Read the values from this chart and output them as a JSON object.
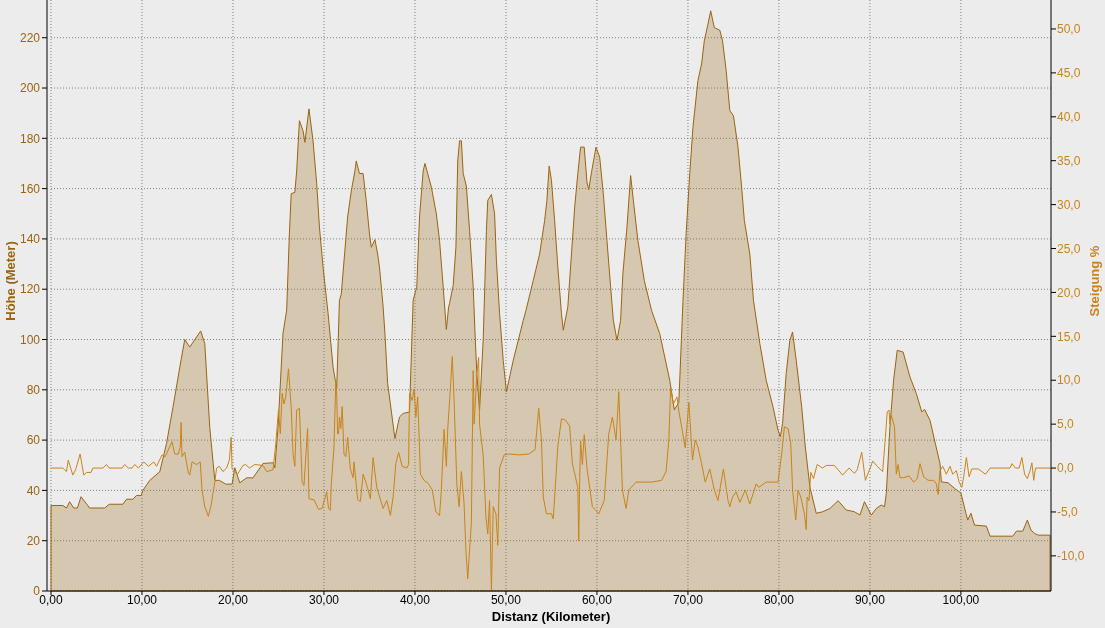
{
  "chart_data": {
    "type": "area",
    "xlabel": "Distanz (Kilometer)",
    "ylabel": "Höhe (Meter)",
    "y2label": "Steigung %",
    "xlim": [
      0,
      109.9
    ],
    "xticks": [
      {
        "value": 0,
        "label": "0,00"
      },
      {
        "value": 10,
        "label": "10,00"
      },
      {
        "value": 20,
        "label": "20,00"
      },
      {
        "value": 30,
        "label": "30,00"
      },
      {
        "value": 40,
        "label": "40,00"
      },
      {
        "value": 50,
        "label": "50,00"
      },
      {
        "value": 60,
        "label": "60,00"
      },
      {
        "value": 70,
        "label": "70,00"
      },
      {
        "value": 80,
        "label": "80,00"
      },
      {
        "value": 90,
        "label": "90,00"
      },
      {
        "value": 100,
        "label": "100,00"
      }
    ],
    "ylim": [
      0,
      235
    ],
    "yticks": [
      0,
      20,
      40,
      60,
      80,
      100,
      120,
      140,
      160,
      180,
      200,
      220
    ],
    "y2lim": [
      -14.0,
      53.3
    ],
    "y2ticks": [
      {
        "value": -10,
        "label": "-10,0"
      },
      {
        "value": -5,
        "label": "-5,0"
      },
      {
        "value": 0,
        "label": "0,0"
      },
      {
        "value": 5,
        "label": "5,0"
      },
      {
        "value": 10,
        "label": "10,0"
      },
      {
        "value": 15,
        "label": "15,0"
      },
      {
        "value": 20,
        "label": "20,0"
      },
      {
        "value": 25,
        "label": "25,0"
      },
      {
        "value": 30,
        "label": "30,0"
      },
      {
        "value": 35,
        "label": "35,0"
      },
      {
        "value": 40,
        "label": "40,0"
      },
      {
        "value": 45,
        "label": "45,0"
      },
      {
        "value": 50,
        "label": "50,0"
      }
    ],
    "grid": true,
    "series": [
      {
        "type": "area",
        "color": "#9a6410",
        "x": [
          0,
          1.3,
          1.7,
          2.05,
          2.5,
          2.9,
          3.3,
          4.25,
          5.9,
          6.4,
          7.9,
          8.3,
          9.0,
          9.4,
          9.9,
          10.1,
          10.85,
          11.95,
          12.7,
          13.4,
          14.3,
          14.7,
          15.25,
          16.0,
          16.45,
          16.9,
          17.45,
          18.0,
          18.5,
          19.2,
          19.9,
          20.2,
          20.75,
          21.5,
          22.2,
          23.3,
          24.4,
          24.6,
          24.95,
          25.5,
          25.9,
          26.2,
          26.4,
          26.8,
          27.0,
          27.3,
          27.7,
          27.9,
          28.35,
          28.8,
          29.2,
          29.5,
          29.9,
          30.45,
          31.0,
          31.4,
          31.7,
          31.9,
          32.6,
          33.0,
          33.4,
          33.55,
          33.9,
          34.3,
          34.65,
          35.0,
          35.2,
          35.6,
          35.9,
          36.1,
          36.5,
          36.7,
          37.0,
          37.8,
          38.3,
          38.7,
          39.4,
          39.8,
          40.2,
          40.5,
          40.9,
          41.1,
          41.4,
          41.8,
          42.35,
          42.7,
          43.1,
          43.45,
          43.7,
          43.8,
          44.2,
          44.5,
          44.7,
          44.9,
          45.1,
          45.3,
          45.65,
          46.0,
          46.4,
          46.6,
          46.8,
          47.1,
          47.5,
          47.85,
          48.0,
          48.4,
          48.75,
          48.95,
          49.3,
          49.7,
          50.05,
          50.8,
          51.9,
          52.2,
          53.0,
          53.7,
          54.25,
          54.5,
          54.75,
          55.0,
          55.35,
          55.7,
          56.1,
          56.3,
          56.8,
          57.2,
          57.55,
          57.9,
          58.2,
          58.6,
          58.9,
          59.1,
          59.4,
          59.9,
          60.3,
          60.7,
          61.1,
          61.5,
          61.8,
          62.2,
          62.6,
          62.85,
          63.3,
          63.7,
          64.0,
          64.5,
          65.2,
          66.0,
          66.9,
          68.0,
          68.5,
          69.0,
          69.45,
          69.8,
          70.2,
          70.55,
          71.1,
          71.5,
          71.8,
          72.2,
          72.5,
          72.9,
          73.5,
          73.8,
          74.2,
          74.6,
          75.0,
          75.5,
          75.9,
          76.2,
          76.8,
          77.2,
          77.9,
          78.6,
          79.35,
          79.9,
          80.15,
          80.4,
          80.8,
          81.2,
          81.5,
          81.9,
          82.5,
          82.9,
          83.4,
          84.1,
          84.8,
          85.6,
          86.5,
          87.4,
          88.3,
          88.9,
          89.4,
          90.15,
          90.7,
          91.25,
          91.6,
          91.8,
          92.2,
          92.6,
          93.0,
          93.65,
          94.4,
          95.1,
          95.7,
          96.0,
          96.6,
          97.1,
          97.7,
          97.85,
          98.6,
          99.3,
          100.0,
          100.55,
          100.75,
          101.1,
          101.5,
          102.8,
          103.2,
          105.7,
          106.1,
          106.8,
          107.3,
          107.7,
          108.1,
          108.5,
          109.8
        ],
        "values": [
          34,
          34,
          33,
          35.5,
          33,
          33,
          37.5,
          33,
          33,
          34.5,
          34.5,
          36.5,
          36.5,
          38,
          38,
          40,
          44,
          47.4,
          58.7,
          73,
          92,
          100,
          97,
          101,
          103.4,
          98.4,
          65,
          44,
          44,
          42.5,
          42.5,
          49,
          43,
          45,
          45,
          50.7,
          51,
          49,
          65,
          102.5,
          111.6,
          142,
          158,
          158.5,
          167,
          187,
          183,
          178.4,
          191.7,
          179,
          162,
          144.7,
          128.8,
          110.4,
          89,
          80.5,
          115.6,
          118,
          148.7,
          159,
          167,
          171,
          166,
          166,
          155,
          142,
          136.7,
          139.7,
          134,
          128.8,
          113,
          102.3,
          82.5,
          60.6,
          69.2,
          70.6,
          71.2,
          115.6,
          121,
          148.7,
          167,
          170,
          166,
          160.6,
          150,
          139.4,
          121,
          104,
          113,
          114.3,
          121.5,
          136.7,
          171,
          179,
          179,
          166,
          161,
          143.4,
          121,
          102.4,
          86.5,
          72,
          100,
          143,
          155.3,
          157.7,
          150,
          131.5,
          110.3,
          91.7,
          79.2,
          91.7,
          107.6,
          111.6,
          123.5,
          134,
          147.3,
          155.3,
          169,
          163.2,
          147.3,
          128.8,
          110.3,
          103.7,
          113,
          134,
          152.6,
          166,
          176.5,
          176.5,
          162.6,
          159.6,
          166.5,
          176.5,
          172.5,
          158,
          139.4,
          121,
          107.6,
          99.7,
          107.6,
          126.2,
          144.7,
          165.2,
          155.3,
          139.4,
          123.5,
          111.6,
          102.3,
          83.8,
          72,
          75,
          115,
          142,
          166,
          184.4,
          203,
          209.6,
          218.8,
          225.4,
          230.7,
          224,
          223,
          218.8,
          207,
          191,
          189,
          176.5,
          160.6,
          147.3,
          134,
          115.6,
          98.4,
          83.8,
          73.2,
          64,
          61.3,
          66.6,
          86.5,
          99.7,
          103,
          91.7,
          73.2,
          57.3,
          41.4,
          30.9,
          31.5,
          32.8,
          35.9,
          32.2,
          31.5,
          30.2,
          35.5,
          30.2,
          32.8,
          34.2,
          33.5,
          38.8,
          65.3,
          83.8,
          95.7,
          95,
          85.1,
          78.5,
          71.2,
          72.2,
          67.9,
          60,
          50.7,
          43.4,
          43,
          40.8,
          39,
          30.9,
          28.2,
          30.9,
          26.2,
          25.8,
          21.8,
          21.8,
          23.8,
          23.8,
          28.2,
          24.2,
          22.9,
          22.2,
          22.2
        ]
      },
      {
        "type": "line",
        "axis": "y2",
        "color": "#c8841a",
        "x": [
          0,
          1.3,
          1.7,
          1.9,
          2.4,
          2.7,
          3.2,
          3.6,
          3.9,
          4.4,
          4.6,
          5.7,
          6.1,
          6.4,
          7.8,
          8.1,
          8.5,
          8.9,
          9.2,
          9.6,
          10.2,
          10.7,
          11.3,
          11.6,
          12.2,
          12.55,
          13.3,
          13.6,
          14.0,
          14.2,
          14.3,
          14.4,
          14.7,
          15.1,
          15.25,
          15.5,
          16.0,
          16.4,
          16.6,
          16.9,
          17.3,
          17.6,
          18.0,
          18.2,
          18.5,
          18.9,
          19.3,
          19.6,
          19.8,
          19.9,
          20.5,
          21.1,
          21.4,
          21.8,
          22.4,
          23.3,
          23.7,
          24.4,
          24.7,
          25.0,
          25.2,
          25.4,
          25.6,
          25.8,
          26.1,
          26.4,
          26.6,
          26.8,
          27.0,
          27.3,
          27.6,
          27.8,
          28.2,
          28.35,
          28.9,
          29.4,
          29.8,
          30.3,
          30.5,
          30.7,
          30.8,
          31.1,
          31.3,
          31.4,
          31.5,
          31.6,
          31.7,
          31.85,
          32.0,
          32.2,
          32.4,
          32.6,
          32.9,
          33.2,
          33.3,
          33.7,
          34.0,
          34.3,
          34.6,
          34.8,
          35.1,
          35.4,
          35.8,
          36.5,
          36.9,
          37.3,
          37.6,
          37.9,
          38.2,
          38.6,
          39.1,
          39.3,
          39.4,
          39.7,
          39.9,
          40.1,
          40.3,
          40.6,
          41.0,
          41.5,
          41.9,
          42.3,
          42.7,
          42.9,
          43.2,
          43.45,
          43.6,
          43.9,
          44.1,
          44.3,
          44.6,
          44.85,
          45.1,
          45.4,
          45.6,
          45.8,
          46.2,
          46.4,
          46.5,
          46.8,
          47.0,
          47.1,
          47.5,
          47.8,
          48.0,
          48.2,
          48.4,
          48.6,
          48.9,
          49.1,
          49.3,
          49.8,
          50.3,
          51.4,
          52.5,
          53.2,
          53.6,
          53.9,
          54.1,
          54.45,
          55.0,
          55.2,
          55.4,
          55.7,
          56.1,
          56.5,
          57.0,
          57.3,
          57.9,
          58.0,
          58.1,
          58.2,
          58.4,
          58.6,
          58.9,
          59.5,
          60.2,
          60.8,
          61.3,
          61.7,
          62.1,
          62.4,
          62.8,
          63.2,
          63.5,
          64.3,
          65.2,
          66.0,
          67.1,
          67.6,
          67.9,
          68.1,
          68.4,
          68.8,
          69.0,
          69.4,
          69.7,
          70.1,
          70.5,
          70.8,
          71.1,
          71.5,
          71.9,
          72.4,
          72.9,
          73.3,
          73.9,
          74.4,
          74.6,
          74.9,
          75.3,
          75.7,
          76.3,
          76.8,
          77.5,
          77.8,
          78.6,
          79.9,
          80.3,
          80.6,
          81.0,
          81.3,
          81.5,
          81.85,
          82.1,
          82.4,
          82.8,
          83.0,
          83.1,
          83.3,
          83.5,
          83.8,
          84.2,
          84.8,
          85.2,
          86.1,
          87.0,
          87.7,
          88.3,
          88.6,
          89.1,
          89.5,
          90.1,
          90.3,
          90.8,
          91.4,
          91.7,
          91.9,
          92.1,
          92.2,
          92.35,
          92.7,
          92.9,
          93.1,
          93.3,
          93.7,
          94.3,
          94.8,
          95.2,
          95.5,
          95.9,
          96.4,
          97.0,
          97.3,
          97.5,
          97.7,
          98.0,
          98.4,
          98.8,
          99.1,
          99.5,
          99.8,
          100.1,
          100.3,
          100.6,
          100.9,
          101.2,
          101.9,
          102.7,
          103.2,
          105.4,
          105.6,
          106.0,
          106.4,
          106.7,
          107.0,
          107.3,
          107.6,
          107.8,
          108.0,
          108.2,
          109.8
        ],
        "values": [
          0,
          0,
          -0.4,
          0.9,
          -0.8,
          -0.2,
          1.6,
          -0.8,
          -0.5,
          -0.5,
          0,
          0,
          0.4,
          0,
          0,
          0.4,
          0,
          0,
          0.4,
          0,
          0.7,
          0.2,
          0.7,
          0.2,
          1.5,
          1.3,
          3.0,
          1.6,
          1.6,
          2.4,
          5.2,
          1.3,
          1.8,
          -0.6,
          -0.8,
          0.7,
          0.4,
          0.7,
          -2.5,
          -4.4,
          -5.5,
          -4.2,
          -1.6,
          0,
          0.2,
          -0.4,
          0,
          0.9,
          3.5,
          -0.1,
          -0.7,
          0.3,
          0.4,
          0,
          0.4,
          0.3,
          -0.4,
          -0.2,
          2.8,
          6.6,
          3.9,
          8.5,
          7.3,
          8.1,
          11.3,
          6.9,
          1.6,
          0.2,
          6.6,
          6.8,
          -1.6,
          -2.0,
          4.5,
          -3.5,
          -3.6,
          -4.7,
          -4.6,
          -2.7,
          -4.6,
          -4.8,
          -1.9,
          2.4,
          10.0,
          8.3,
          3.9,
          3.9,
          5.8,
          4.5,
          7.0,
          1.6,
          1.3,
          3.5,
          -0.1,
          -1.1,
          0.7,
          -3.6,
          -3.8,
          -0.7,
          -1.6,
          -2.3,
          -3.5,
          1.2,
          -2.2,
          -4.6,
          -3.7,
          -5.4,
          -3.3,
          0.5,
          1.8,
          0.2,
          0,
          0.4,
          8.5,
          7.7,
          9.0,
          5.8,
          8.1,
          -0.7,
          -1.4,
          -1.8,
          -2.5,
          -5.0,
          -5.4,
          -2.5,
          4.4,
          0.2,
          4.4,
          9.2,
          12.7,
          7.7,
          -1.8,
          -4.4,
          -0.4,
          -4.1,
          -9.4,
          -12.6,
          -6.2,
          11.1,
          5.0,
          10.7,
          12.6,
          5.0,
          1.4,
          -5.6,
          -7.5,
          -3.7,
          -13.9,
          -4.4,
          -5.2,
          -8.8,
          0,
          1.5,
          1.6,
          1.5,
          1.6,
          2.1,
          6.8,
          3.2,
          -3.3,
          -5.2,
          -5.2,
          -5.8,
          -2.5,
          2.5,
          5.6,
          5.5,
          4.8,
          0.5,
          -2.2,
          -8.3,
          -1.5,
          3.1,
          0.4,
          3.8,
          0,
          -4.4,
          -5.2,
          -3.7,
          3.9,
          5.8,
          3.2,
          8.7,
          -2.5,
          -4.6,
          -2.5,
          -1.6,
          -1.6,
          -1.6,
          -1.4,
          -0.4,
          3.2,
          9.2,
          7.3,
          8.1,
          6.5,
          4.1,
          2.3,
          7.5,
          0.9,
          3.2,
          2.4,
          0.5,
          -1.6,
          -0.1,
          -2.5,
          -3.7,
          -0.1,
          -3.7,
          -4.4,
          -3.3,
          -2.7,
          -3.9,
          -2.5,
          -4.1,
          -1.8,
          -2.2,
          -1.6,
          -1.6,
          1.6,
          4.7,
          4.5,
          2.8,
          -2.5,
          -5.9,
          -2.5,
          -3.3,
          -5.2,
          -7.0,
          -3.3,
          -3.7,
          -0.5,
          -1.2,
          0.4,
          0,
          0.3,
          0.3,
          -0.8,
          0,
          -0.6,
          -0.2,
          1.8,
          -1.4,
          0.2,
          0.8,
          0.2,
          -0.4,
          3.5,
          6.4,
          6.6,
          5.0,
          6.0,
          4.7,
          -0.7,
          0.4,
          -1.1,
          -1.1,
          -0.9,
          -1.6,
          -1.2,
          0.5,
          -1.0,
          -1.4,
          -1.4,
          -1.8,
          -3.0,
          -0.3,
          0.2,
          -0.7,
          0.2,
          -0.7,
          -0.3,
          -1.6,
          -2.2,
          -1.0,
          1.2,
          -1.0,
          -0.1,
          -0.1,
          -0.7,
          0,
          0,
          0.5,
          0,
          0,
          1.2,
          -0.7,
          -1.2,
          -0.3,
          0.6,
          -1.4,
          0,
          0
        ]
      }
    ]
  }
}
